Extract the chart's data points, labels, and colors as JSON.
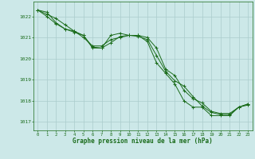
{
  "title": "",
  "xlabel": "Graphe pression niveau de la mer (hPa)",
  "ylabel": "",
  "bg_color": "#cce8e8",
  "grid_color": "#aacccc",
  "line_color": "#1a6b1a",
  "marker_color": "#1a6b1a",
  "ylim": [
    1016.6,
    1022.7
  ],
  "xlim": [
    -0.5,
    23.5
  ],
  "yticks": [
    1017,
    1018,
    1019,
    1020,
    1021,
    1022
  ],
  "xticks": [
    0,
    1,
    2,
    3,
    4,
    5,
    6,
    7,
    8,
    9,
    10,
    11,
    12,
    13,
    14,
    15,
    16,
    17,
    18,
    19,
    20,
    21,
    22,
    23
  ],
  "line1": [
    1022.3,
    1022.1,
    1021.9,
    1021.6,
    1021.3,
    1021.1,
    1020.5,
    1020.5,
    1021.1,
    1021.2,
    1021.1,
    1021.1,
    1020.8,
    1019.8,
    1019.3,
    1018.8,
    1018.0,
    1017.7,
    1017.7,
    1017.3,
    1017.3,
    1017.3,
    1017.7,
    1017.8
  ],
  "line2": [
    1022.3,
    1022.2,
    1021.7,
    1021.4,
    1021.3,
    1021.0,
    1020.6,
    1020.6,
    1020.9,
    1021.0,
    1021.1,
    1021.1,
    1021.0,
    1020.5,
    1019.5,
    1019.2,
    1018.5,
    1018.1,
    1017.9,
    1017.5,
    1017.4,
    1017.4,
    1017.7,
    1017.85
  ],
  "line3": [
    1022.3,
    1022.0,
    1021.65,
    1021.4,
    1021.25,
    1021.1,
    1020.55,
    1020.5,
    1020.75,
    1021.05,
    1021.1,
    1021.05,
    1020.9,
    1020.15,
    1019.4,
    1018.95,
    1018.7,
    1018.2,
    1017.75,
    1017.45,
    1017.35,
    1017.35,
    1017.7,
    1017.85
  ]
}
